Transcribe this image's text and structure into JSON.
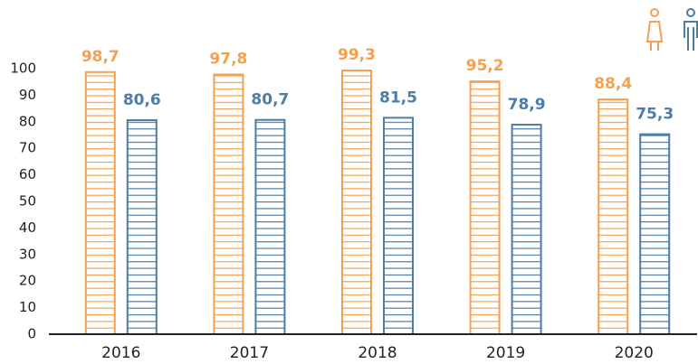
{
  "chart_data": {
    "type": "bar",
    "categories": [
      "2016",
      "2017",
      "2018",
      "2019",
      "2020"
    ],
    "series": [
      {
        "color": "#f5a04e",
        "values": [
          98.7,
          97.8,
          99.3,
          95.2,
          88.4
        ],
        "value_labels": [
          "98,7",
          "97,8",
          "99,3",
          "95,2",
          "88,4"
        ]
      },
      {
        "color": "#4c7ca8",
        "values": [
          80.6,
          80.7,
          81.5,
          78.9,
          75.3
        ],
        "value_labels": [
          "80,6",
          "80,7",
          "81,5",
          "78,9",
          "75,3"
        ]
      }
    ],
    "ylim": [
      0,
      100
    ],
    "yticks": [
      0,
      10,
      20,
      30,
      40,
      50,
      60,
      70,
      80,
      90,
      100
    ],
    "grid": false
  }
}
